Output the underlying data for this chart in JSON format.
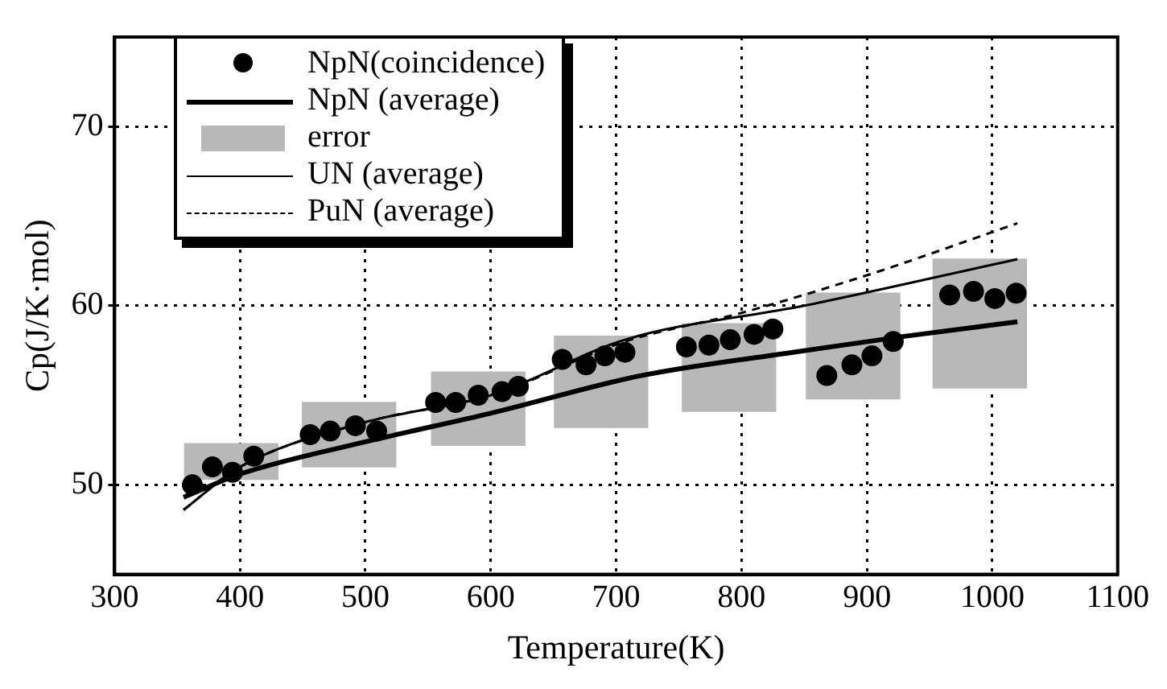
{
  "chart_data": {
    "type": "scatter",
    "xlabel": "Temperature(K)",
    "ylabel": "Cp(J/K·mol)",
    "xlim": [
      300,
      1100
    ],
    "xticks": [
      300,
      400,
      500,
      600,
      700,
      800,
      900,
      1000,
      1100
    ],
    "ylim": [
      45,
      75
    ],
    "yticks": [
      50,
      60,
      70
    ],
    "grid": true,
    "legend": "top left",
    "series": [
      {
        "name": "NpN(coincidence)",
        "marker": "circle",
        "color": "#000000",
        "x": [
          362,
          378,
          394,
          411,
          456,
          472,
          492,
          509,
          556,
          572,
          590,
          609,
          622,
          657,
          676,
          691,
          707,
          756,
          774,
          791,
          810,
          825,
          868,
          888,
          904,
          921,
          966,
          985,
          1002,
          1019
        ],
        "values": [
          50.0,
          51.0,
          50.7,
          51.6,
          52.8,
          53.0,
          53.3,
          53.0,
          54.6,
          54.6,
          55.0,
          55.2,
          55.5,
          57.0,
          56.7,
          57.2,
          57.4,
          57.7,
          57.8,
          58.1,
          58.4,
          58.7,
          56.1,
          56.7,
          57.2,
          58.0,
          60.6,
          60.8,
          60.4,
          60.7
        ]
      },
      {
        "name": "NpN (average)",
        "type": "line",
        "marker": "none",
        "color": "#000000",
        "line_style": "solid",
        "x": [
          355,
          400,
          500,
          600,
          720,
          841,
          931,
          1020
        ],
        "values": [
          49.3,
          50.6,
          52.4,
          54.0,
          56.1,
          57.4,
          58.3,
          59.1
        ]
      },
      {
        "name": "error",
        "type": "bar",
        "color": "#b8b8b8",
        "x": [
          393,
          487,
          590,
          688,
          790,
          889,
          990
        ],
        "base": [
          50.3,
          51.0,
          52.2,
          53.2,
          54.1,
          54.8,
          55.4
        ],
        "values": [
          2.0,
          3.6,
          4.1,
          5.1,
          4.9,
          5.9,
          7.2
        ]
      },
      {
        "name": "UN (average)",
        "type": "line",
        "marker": "none",
        "color": "#000000",
        "line_style": "solid",
        "x": [
          355,
          400,
          500,
          600,
          707,
          850,
          1020
        ],
        "values": [
          48.6,
          51.0,
          53.5,
          55.0,
          58.1,
          60.0,
          62.6
        ]
      },
      {
        "name": "PuN (average)",
        "type": "line",
        "marker": "none",
        "color": "#000000",
        "line_style": "dashed",
        "x": [
          355,
          400,
          500,
          600,
          707,
          800,
          900,
          1020
        ],
        "values": [
          48.6,
          51.0,
          53.5,
          55.0,
          58.0,
          59.6,
          61.7,
          64.6
        ]
      }
    ]
  }
}
